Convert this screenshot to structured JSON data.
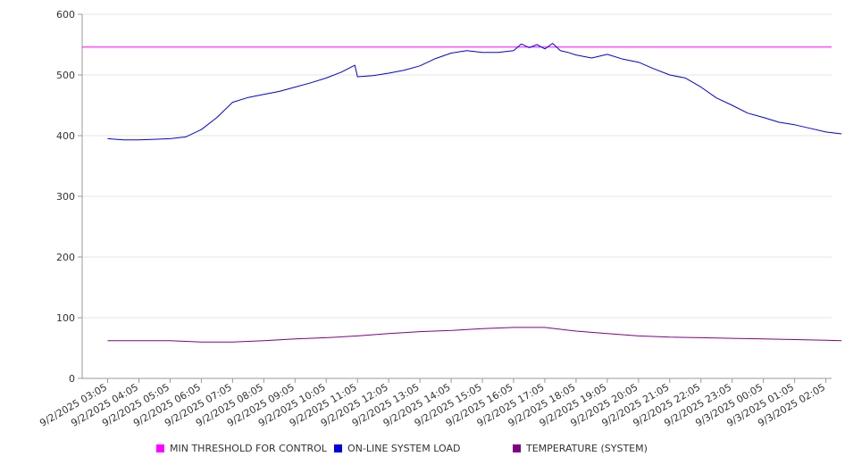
{
  "chart_data": {
    "type": "line",
    "x_ticks": [
      "9/2/2025 03:05",
      "9/2/2025 04:05",
      "9/2/2025 05:05",
      "9/2/2025 06:05",
      "9/2/2025 07:05",
      "9/2/2025 08:05",
      "9/2/2025 09:05",
      "9/2/2025 10:05",
      "9/2/2025 11:05",
      "9/2/2025 12:05",
      "9/2/2025 13:05",
      "9/2/2025 14:05",
      "9/2/2025 15:05",
      "9/2/2025 16:05",
      "9/2/2025 17:05",
      "9/2/2025 18:05",
      "9/2/2025 19:05",
      "9/2/2025 20:05",
      "9/2/2025 21:05",
      "9/2/2025 22:05",
      "9/2/2025 23:05",
      "9/3/2025 00:05",
      "9/3/2025 01:05",
      "9/3/2025 02:05"
    ],
    "y_ticks": [
      0,
      100,
      200,
      300,
      400,
      500,
      600
    ],
    "ylim": [
      0,
      600
    ],
    "grid": true,
    "legend_position": "bottom",
    "series": [
      {
        "name": "MIN THRESHOLD FOR CONTROL",
        "color": "#ff00ff",
        "x": [
          "9/2/2025 03:05",
          "9/3/2025 02:05"
        ],
        "values": [
          546,
          546
        ]
      },
      {
        "name": "ON-LINE SYSTEM LOAD",
        "color": "#0000dd",
        "x": [
          "9/2/2025 03:05",
          "9/2/2025 03:35",
          "9/2/2025 04:05",
          "9/2/2025 04:35",
          "9/2/2025 05:05",
          "9/2/2025 05:35",
          "9/2/2025 06:05",
          "9/2/2025 06:35",
          "9/2/2025 07:05",
          "9/2/2025 07:35",
          "9/2/2025 08:05",
          "9/2/2025 08:35",
          "9/2/2025 09:05",
          "9/2/2025 09:35",
          "9/2/2025 10:05",
          "9/2/2025 10:35",
          "9/2/2025 11:00",
          "9/2/2025 11:05",
          "9/2/2025 11:35",
          "9/2/2025 12:05",
          "9/2/2025 12:35",
          "9/2/2025 13:05",
          "9/2/2025 13:35",
          "9/2/2025 14:05",
          "9/2/2025 14:35",
          "9/2/2025 15:05",
          "9/2/2025 15:35",
          "9/2/2025 16:05",
          "9/2/2025 16:20",
          "9/2/2025 16:35",
          "9/2/2025 16:50",
          "9/2/2025 17:05",
          "9/2/2025 17:20",
          "9/2/2025 17:35",
          "9/2/2025 17:50",
          "9/2/2025 18:05",
          "9/2/2025 18:35",
          "9/2/2025 19:05",
          "9/2/2025 19:35",
          "9/2/2025 20:05",
          "9/2/2025 20:35",
          "9/2/2025 21:05",
          "9/2/2025 21:35",
          "9/2/2025 22:05",
          "9/2/2025 22:35",
          "9/2/2025 23:05",
          "9/2/2025 23:35",
          "9/3/2025 00:05",
          "9/3/2025 00:35",
          "9/3/2025 01:05",
          "9/3/2025 01:35",
          "9/3/2025 02:05",
          "9/3/2025 02:35"
        ],
        "values": [
          395,
          393,
          393,
          394,
          395,
          398,
          410,
          430,
          455,
          463,
          468,
          473,
          480,
          487,
          495,
          505,
          516,
          497,
          499,
          503,
          508,
          515,
          527,
          536,
          540,
          537,
          537,
          540,
          551,
          545,
          550,
          543,
          552,
          540,
          537,
          533,
          528,
          534,
          526,
          521,
          510,
          500,
          495,
          480,
          462,
          450,
          437,
          430,
          422,
          418,
          412,
          406,
          403
        ]
      },
      {
        "name": "TEMPERATURE (SYSTEM)",
        "color": "#800080",
        "x": [
          "9/2/2025 03:05",
          "9/2/2025 04:05",
          "9/2/2025 05:05",
          "9/2/2025 06:05",
          "9/2/2025 07:05",
          "9/2/2025 08:05",
          "9/2/2025 09:05",
          "9/2/2025 10:05",
          "9/2/2025 11:05",
          "9/2/2025 12:05",
          "9/2/2025 13:05",
          "9/2/2025 14:05",
          "9/2/2025 15:05",
          "9/2/2025 16:05",
          "9/2/2025 17:05",
          "9/2/2025 18:05",
          "9/2/2025 19:05",
          "9/2/2025 20:05",
          "9/2/2025 21:05",
          "9/2/2025 22:05",
          "9/2/2025 23:05",
          "9/3/2025 00:05",
          "9/3/2025 01:05",
          "9/3/2025 02:05",
          "9/3/2025 02:35"
        ],
        "values": [
          62,
          62,
          62,
          60,
          60,
          62,
          65,
          67,
          70,
          74,
          77,
          79,
          82,
          84,
          84,
          78,
          74,
          70,
          68,
          67,
          66,
          65,
          64,
          63,
          62
        ]
      }
    ]
  }
}
